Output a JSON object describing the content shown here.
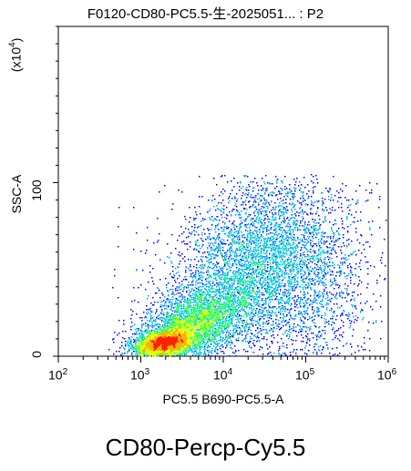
{
  "chart_data": {
    "type": "scatter",
    "title": "F0120-CD80-PC5.5-生-2025051... : P2",
    "caption": "CD80-Percp-Cy5.5",
    "xlabel": "PC5.5 B690-PC5.5-A",
    "ylabel": "SSC-A",
    "y_multiplier": {
      "base": "(x10",
      "exp": "4",
      "close": ")"
    },
    "x_scale": "log",
    "x_range": [
      100,
      1000000
    ],
    "y_range": [
      0,
      190
    ],
    "x_ticks": [
      {
        "base": "10",
        "exp": "2",
        "value": 100
      },
      {
        "base": "10",
        "exp": "3",
        "value": 1000
      },
      {
        "base": "10",
        "exp": "4",
        "value": 10000
      },
      {
        "base": "10",
        "exp": "5",
        "value": 100000
      },
      {
        "base": "10",
        "exp": "6",
        "value": 1000000
      }
    ],
    "y_ticks": [
      {
        "label": "0",
        "value": 0
      },
      {
        "label": "100",
        "value": 100
      }
    ],
    "colormap": [
      "#0000ff",
      "#00a0ff",
      "#00e0c0",
      "#40ff40",
      "#e0ff00",
      "#ffb000",
      "#ff2000"
    ],
    "populations": [
      {
        "name": "core",
        "cx_log": 3.28,
        "cy": 8,
        "sx_log": 0.17,
        "sy": 3.5,
        "rot": 0.35,
        "n": 3000
      },
      {
        "name": "mid",
        "cx_log": 3.6,
        "cy": 18,
        "sx_log": 0.33,
        "sy": 10,
        "rot": 0.5,
        "n": 3400
      },
      {
        "name": "upper",
        "cx_log": 4.35,
        "cy": 52,
        "sx_log": 0.45,
        "sy": 24,
        "rot": 0.25,
        "n": 3800
      },
      {
        "name": "right",
        "cx_log": 5.1,
        "cy": 42,
        "sx_log": 0.38,
        "sy": 28,
        "rot": 0.0,
        "n": 1200
      },
      {
        "name": "sparse",
        "cx_log": 4.4,
        "cy": 45,
        "sx_log": 0.8,
        "sy": 35,
        "rot": 0.1,
        "n": 500
      }
    ]
  }
}
